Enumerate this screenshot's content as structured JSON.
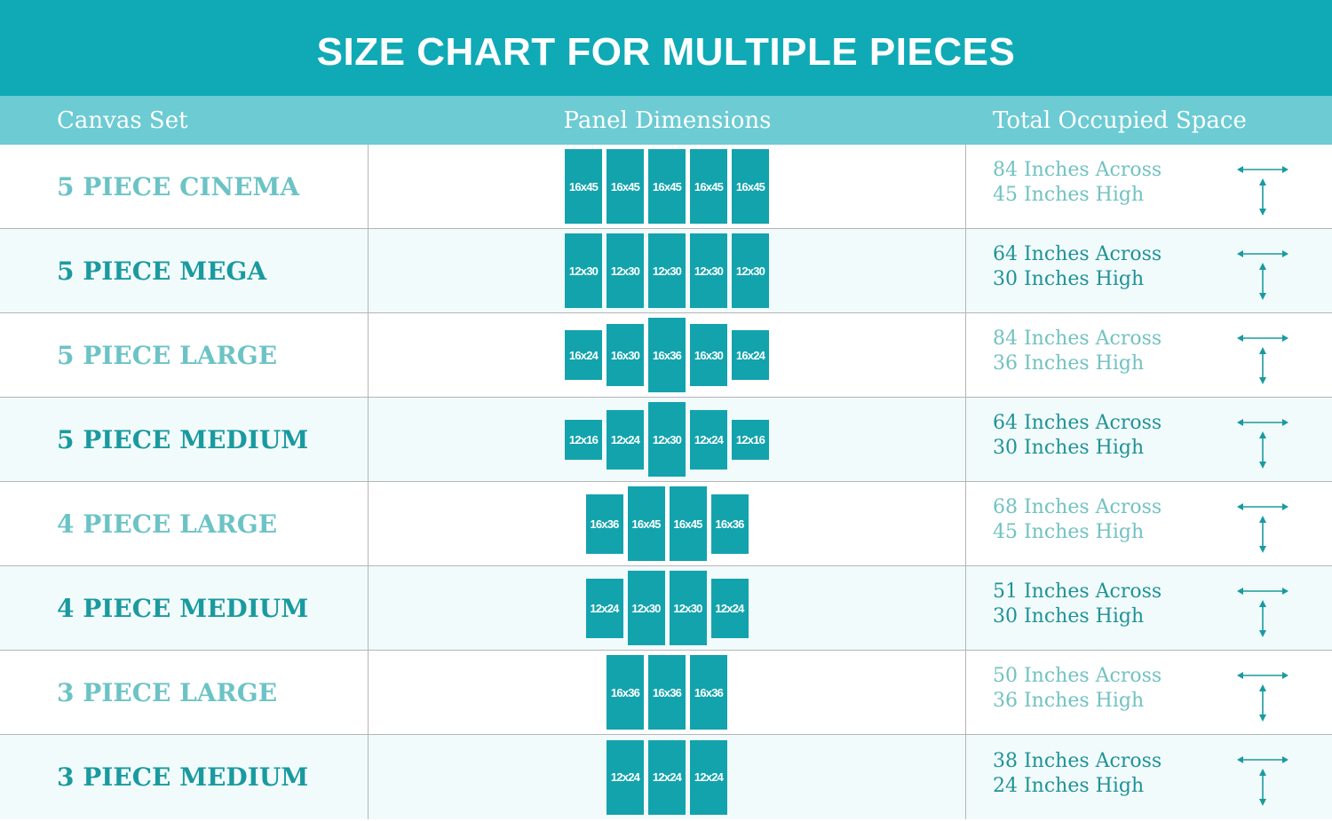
{
  "title": "SIZE CHART FOR MULTIPLE PIECES",
  "columns": [
    "Canvas Set",
    "Panel Dimensions",
    "Total Occupied Space"
  ],
  "colors": {
    "title_bg": "#0faab5",
    "header_bg": "#6ccbd3",
    "panel": "#13a3ad",
    "text_light": "#6cc3c6",
    "text_dark": "#1a9a9f"
  },
  "rows": [
    {
      "name": "5 PIECE CINEMA",
      "panels": [
        "16x45",
        "16x45",
        "16x45",
        "16x45",
        "16x45"
      ],
      "across": "84 Inches Across",
      "high": "45 Inches High"
    },
    {
      "name": "5 PIECE MEGA",
      "panels": [
        "12x30",
        "12x30",
        "12x30",
        "12x30",
        "12x30"
      ],
      "across": "64 Inches Across",
      "high": "30 Inches High"
    },
    {
      "name": "5 PIECE LARGE",
      "panels": [
        "16x24",
        "16x30",
        "16x36",
        "16x30",
        "16x24"
      ],
      "across": "84 Inches Across",
      "high": "36 Inches High"
    },
    {
      "name": "5 PIECE MEDIUM",
      "panels": [
        "12x16",
        "12x24",
        "12x30",
        "12x24",
        "12x16"
      ],
      "across": "64 Inches Across",
      "high": "30 Inches High"
    },
    {
      "name": "4 PIECE LARGE",
      "panels": [
        "16x36",
        "16x45",
        "16x45",
        "16x36"
      ],
      "across": "68 Inches Across",
      "high": "45 Inches High"
    },
    {
      "name": "4 PIECE MEDIUM",
      "panels": [
        "12x24",
        "12x30",
        "12x30",
        "12x24"
      ],
      "across": "51 Inches Across",
      "high": "30 Inches High"
    },
    {
      "name": "3 PIECE LARGE",
      "panels": [
        "16x36",
        "16x36",
        "16x36"
      ],
      "across": "50 Inches Across",
      "high": "36 Inches High"
    },
    {
      "name": "3 PIECE MEDIUM",
      "panels": [
        "12x24",
        "12x24",
        "12x24"
      ],
      "across": "38 Inches Across",
      "high": "24 Inches High"
    }
  ]
}
